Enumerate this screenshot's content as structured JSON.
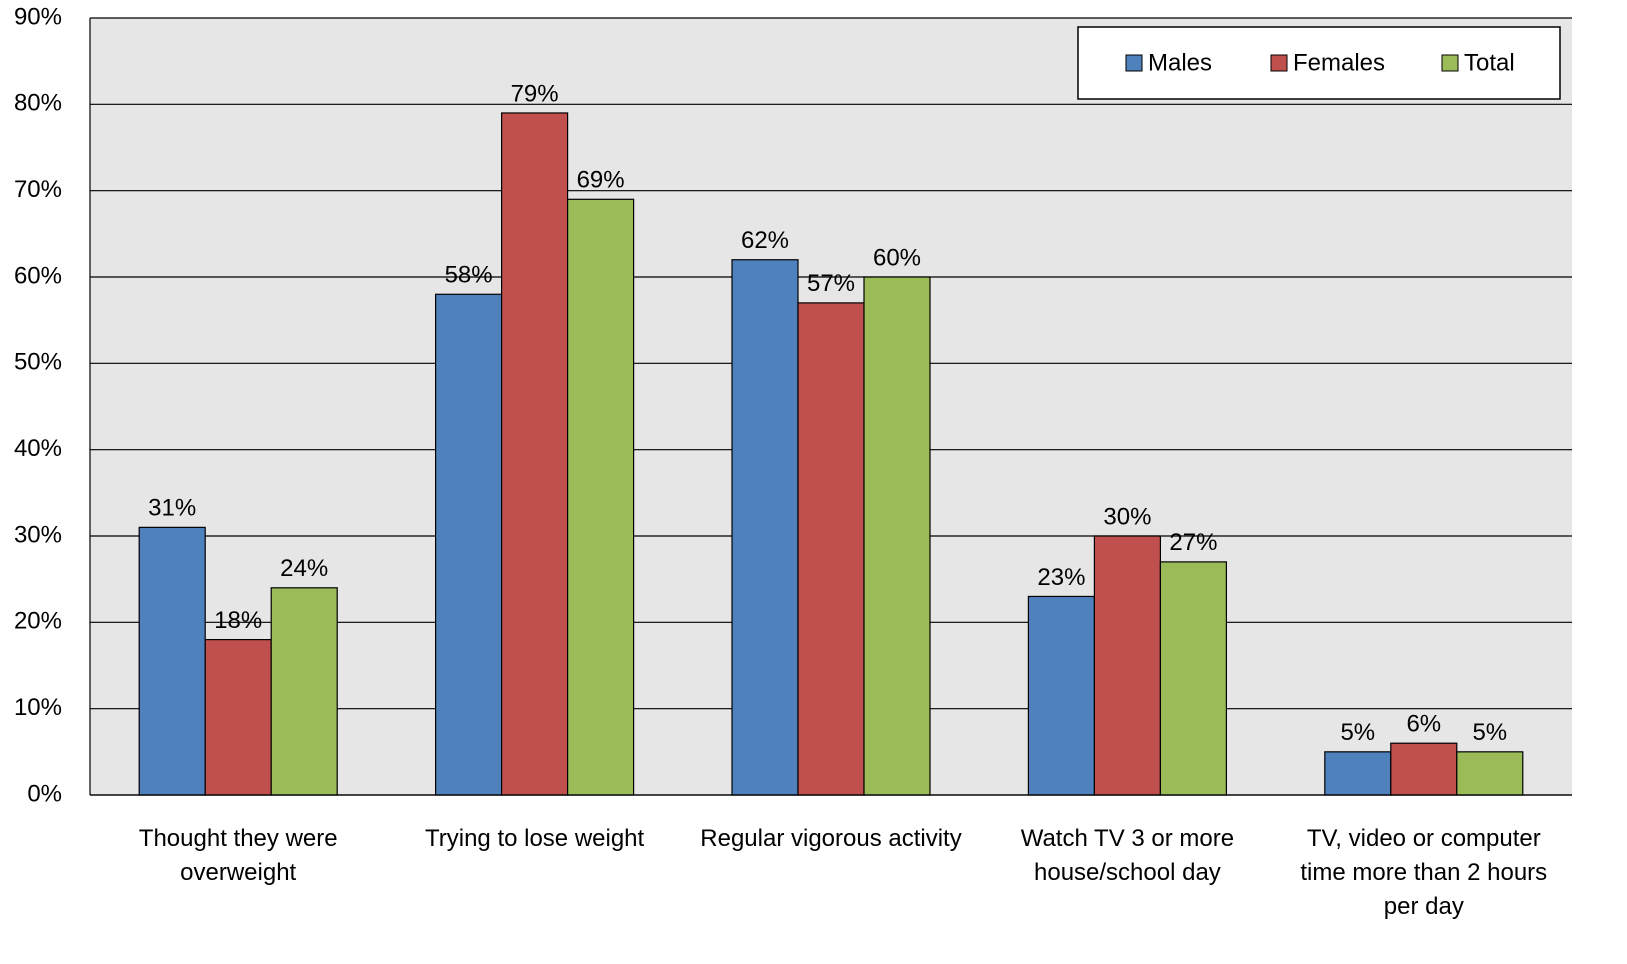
{
  "chart_data": {
    "type": "bar",
    "categories": [
      "Thought they were\noverweight",
      "Trying to lose weight",
      "Regular vigorous activity",
      "Watch TV 3 or more\nhouse/school day",
      "TV, video or computer\ntime more than 2 hours\nper day"
    ],
    "series": [
      {
        "name": "Males",
        "color": "#4f81bd",
        "values": [
          31,
          58,
          62,
          23,
          5
        ],
        "value_labels": [
          "31%",
          "58%",
          "62%",
          "23%",
          "5%"
        ]
      },
      {
        "name": "Females",
        "color": "#c0504d",
        "values": [
          18,
          79,
          57,
          30,
          6
        ],
        "value_labels": [
          "18%",
          "79%",
          "57%",
          "30%",
          "6%"
        ]
      },
      {
        "name": "Total",
        "color": "#9bbb59",
        "values": [
          24,
          69,
          60,
          27,
          5
        ],
        "value_labels": [
          "24%",
          "69%",
          "60%",
          "27%",
          "5%"
        ]
      }
    ],
    "ylim": [
      0,
      90
    ],
    "yticks": [
      {
        "value": 0,
        "label": "0%"
      },
      {
        "value": 10,
        "label": "10%"
      },
      {
        "value": 20,
        "label": "20%"
      },
      {
        "value": 30,
        "label": "30%"
      },
      {
        "value": 40,
        "label": "40%"
      },
      {
        "value": 50,
        "label": "50%"
      },
      {
        "value": 60,
        "label": "60%"
      },
      {
        "value": 70,
        "label": "70%"
      },
      {
        "value": 80,
        "label": "80%"
      },
      {
        "value": 90,
        "label": "90%"
      }
    ],
    "grid": true,
    "legend": "top-right"
  }
}
